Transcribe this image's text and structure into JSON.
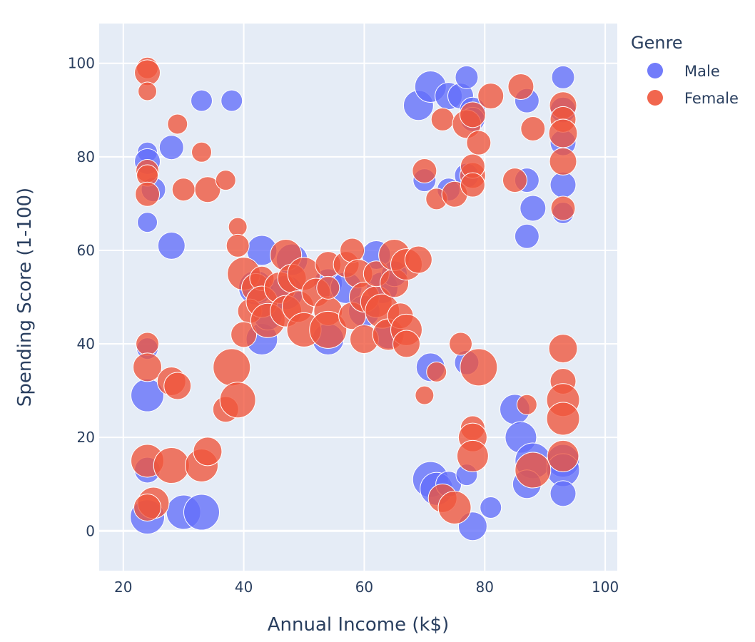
{
  "chart_data": {
    "type": "scatter",
    "xlabel": "Annual Income (k$)",
    "ylabel": "Spending Score (1-100)",
    "xlim": [
      16,
      102
    ],
    "ylim": [
      -8.5,
      108.5
    ],
    "xticks": [
      20,
      40,
      60,
      80,
      100
    ],
    "yticks": [
      0,
      20,
      40,
      60,
      80,
      100
    ],
    "grid": true,
    "legend": {
      "title": "Genre",
      "placement": "top-right"
    },
    "colors": {
      "plot_background": "#e5ecf6",
      "grid": "#ffffff",
      "Male": "#636efa",
      "Female": "#ef553b"
    },
    "size_range": [
      13,
      26
    ],
    "series": [
      {
        "name": "Male",
        "points": [
          [
            24,
            81,
            14
          ],
          [
            24,
            79,
            18
          ],
          [
            24,
            66,
            14
          ],
          [
            28,
            82,
            17
          ],
          [
            25,
            73,
            17
          ],
          [
            28,
            61,
            19
          ],
          [
            33,
            92,
            15
          ],
          [
            38,
            92,
            15
          ],
          [
            24,
            3,
            24
          ],
          [
            30,
            4,
            24
          ],
          [
            33,
            4,
            25
          ],
          [
            24,
            29,
            23
          ],
          [
            24,
            13,
            18
          ],
          [
            24,
            39,
            15
          ],
          [
            43,
            60,
            21
          ],
          [
            43,
            41,
            22
          ],
          [
            42,
            52,
            24
          ],
          [
            44,
            46,
            20
          ],
          [
            47,
            51,
            24
          ],
          [
            48,
            58,
            22
          ],
          [
            54,
            53,
            20
          ],
          [
            54,
            41,
            22
          ],
          [
            57,
            52,
            22
          ],
          [
            60,
            47,
            22
          ],
          [
            62,
            59,
            20
          ],
          [
            63,
            52,
            22
          ],
          [
            64,
            42,
            20
          ],
          [
            65,
            55,
            18
          ],
          [
            69,
            91,
            21
          ],
          [
            71,
            95,
            22
          ],
          [
            74,
            93,
            19
          ],
          [
            76,
            93,
            18
          ],
          [
            77,
            97,
            16
          ],
          [
            78,
            90,
            18
          ],
          [
            78,
            88,
            17
          ],
          [
            87,
            92,
            17
          ],
          [
            93,
            97,
            16
          ],
          [
            93,
            90,
            18
          ],
          [
            93,
            83,
            18
          ],
          [
            93,
            74,
            18
          ],
          [
            93,
            68,
            15
          ],
          [
            70,
            75,
            16
          ],
          [
            74,
            73,
            16
          ],
          [
            77,
            76,
            17
          ],
          [
            87,
            75,
            17
          ],
          [
            88,
            69,
            18
          ],
          [
            87,
            63,
            17
          ],
          [
            71,
            35,
            20
          ],
          [
            77,
            36,
            17
          ],
          [
            71,
            11,
            25
          ],
          [
            72,
            9,
            23
          ],
          [
            74,
            10,
            18
          ],
          [
            77,
            12,
            15
          ],
          [
            81,
            5,
            15
          ],
          [
            78,
            1,
            20
          ],
          [
            85,
            26,
            21
          ],
          [
            86,
            20,
            22
          ],
          [
            88,
            15,
            25
          ],
          [
            87,
            10,
            20
          ],
          [
            93,
            15,
            23
          ],
          [
            93,
            13,
            23
          ],
          [
            93,
            8,
            18
          ]
        ]
      },
      {
        "name": "Female",
        "points": [
          [
            24,
            99,
            15
          ],
          [
            24,
            98,
            18
          ],
          [
            24,
            94,
            13
          ],
          [
            29,
            87,
            14
          ],
          [
            33,
            81,
            14
          ],
          [
            24,
            77,
            16
          ],
          [
            24,
            76,
            15
          ],
          [
            24,
            72,
            17
          ],
          [
            30,
            73,
            16
          ],
          [
            34,
            73,
            18
          ],
          [
            37,
            75,
            14
          ],
          [
            39,
            65,
            13
          ],
          [
            39,
            61,
            16
          ],
          [
            40,
            55,
            23
          ],
          [
            42,
            52,
            20
          ],
          [
            43,
            54,
            17
          ],
          [
            41,
            47,
            17
          ],
          [
            40,
            42,
            18
          ],
          [
            43,
            49,
            22
          ],
          [
            44,
            45,
            24
          ],
          [
            46,
            52,
            22
          ],
          [
            47,
            59,
            22
          ],
          [
            48,
            54,
            20
          ],
          [
            47,
            47,
            22
          ],
          [
            49,
            48,
            22
          ],
          [
            50,
            55,
            23
          ],
          [
            50,
            43,
            24
          ],
          [
            52,
            51,
            20
          ],
          [
            54,
            57,
            18
          ],
          [
            54,
            47,
            20
          ],
          [
            54,
            43,
            26
          ],
          [
            54,
            52,
            16
          ],
          [
            57,
            57,
            18
          ],
          [
            58,
            60,
            17
          ],
          [
            59,
            55,
            20
          ],
          [
            58,
            46,
            19
          ],
          [
            60,
            50,
            21
          ],
          [
            60,
            41,
            20
          ],
          [
            62,
            49,
            22
          ],
          [
            62,
            55,
            18
          ],
          [
            63,
            47,
            24
          ],
          [
            64,
            42,
            22
          ],
          [
            65,
            53,
            20
          ],
          [
            65,
            59,
            22
          ],
          [
            66,
            46,
            18
          ],
          [
            67,
            57,
            22
          ],
          [
            67,
            43,
            22
          ],
          [
            69,
            58,
            19
          ],
          [
            67,
            40,
            19
          ],
          [
            24,
            40,
            16
          ],
          [
            24,
            35,
            20
          ],
          [
            28,
            32,
            20
          ],
          [
            29,
            31,
            19
          ],
          [
            38,
            35,
            26
          ],
          [
            37,
            26,
            18
          ],
          [
            39,
            28,
            25
          ],
          [
            24,
            15,
            23
          ],
          [
            25,
            6,
            22
          ],
          [
            24,
            5,
            19
          ],
          [
            28,
            14,
            25
          ],
          [
            33,
            14,
            23
          ],
          [
            34,
            17,
            20
          ],
          [
            70,
            77,
            17
          ],
          [
            72,
            71,
            15
          ],
          [
            73,
            88,
            16
          ],
          [
            75,
            72,
            18
          ],
          [
            77,
            87,
            20
          ],
          [
            78,
            89,
            18
          ],
          [
            78,
            76,
            18
          ],
          [
            78,
            78,
            17
          ],
          [
            78,
            74,
            17
          ],
          [
            79,
            83,
            17
          ],
          [
            81,
            93,
            18
          ],
          [
            85,
            75,
            17
          ],
          [
            86,
            95,
            18
          ],
          [
            88,
            86,
            17
          ],
          [
            93,
            91,
            19
          ],
          [
            93,
            88,
            18
          ],
          [
            93,
            85,
            20
          ],
          [
            93,
            79,
            19
          ],
          [
            93,
            69,
            17
          ],
          [
            70,
            29,
            13
          ],
          [
            72,
            34,
            14
          ],
          [
            76,
            40,
            16
          ],
          [
            79,
            35,
            26
          ],
          [
            73,
            7,
            20
          ],
          [
            75,
            5,
            23
          ],
          [
            78,
            22,
            17
          ],
          [
            78,
            20,
            20
          ],
          [
            78,
            16,
            22
          ],
          [
            87,
            27,
            14
          ],
          [
            88,
            13,
            25
          ],
          [
            93,
            39,
            20
          ],
          [
            93,
            32,
            18
          ],
          [
            93,
            28,
            23
          ],
          [
            93,
            24,
            23
          ],
          [
            93,
            16,
            22
          ]
        ]
      }
    ]
  }
}
